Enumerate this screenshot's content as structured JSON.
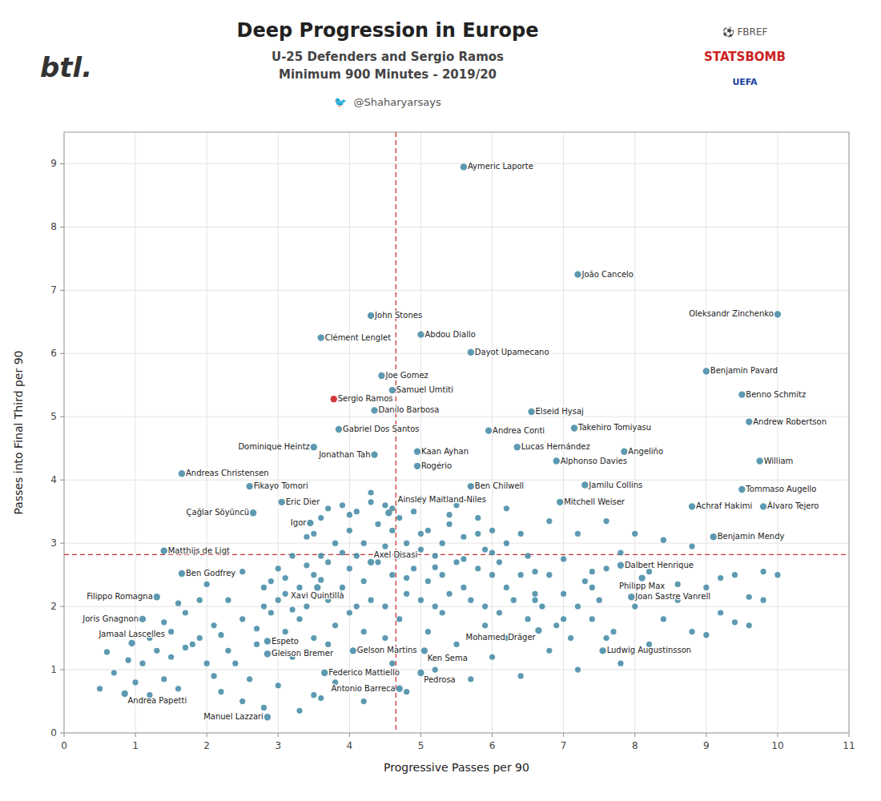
{
  "chart_data": {
    "type": "scatter",
    "title": "Deep Progression in Europe",
    "subtitle": [
      "U-25 Defenders and Sergio Ramos",
      "Minimum 900 Minutes - 2019/20"
    ],
    "annotations": [
      "🐦  @Shaharyarsays",
      "btl.",
      "⚽ FBREF",
      "STATSBOMB",
      "UEFA"
    ],
    "xlabel": "Progressive Passes per 90",
    "ylabel": "Passes into Final Third per 90",
    "xlim": [
      0,
      11
    ],
    "ylim": [
      0,
      9.5
    ],
    "xticks": [
      0,
      1,
      2,
      3,
      4,
      5,
      6,
      7,
      8,
      9,
      10,
      11
    ],
    "yticks": [
      0,
      1,
      2,
      3,
      4,
      5,
      6,
      7,
      8,
      9
    ],
    "grid": true,
    "reference_x": 4.65,
    "reference_y": 2.82,
    "series": [
      {
        "color": "#4a8fa8",
        "x": [
          0.5,
          0.6,
          0.7,
          0.9,
          1.0,
          1.1,
          1.2,
          1.2,
          1.3,
          1.4,
          1.4,
          1.5,
          1.5,
          1.6,
          1.6,
          1.7,
          1.7,
          1.8,
          1.9,
          1.9,
          2.0,
          2.0,
          2.1,
          2.1,
          2.2,
          2.2,
          2.3,
          2.3,
          2.4,
          2.5,
          2.5,
          2.5,
          2.6,
          2.7,
          2.7,
          2.8,
          2.8,
          2.8,
          2.9,
          2.9,
          3.0,
          3.0,
          3.0,
          3.1,
          3.1,
          3.1,
          3.2,
          3.2,
          3.2,
          3.3,
          3.3,
          3.3,
          3.4,
          3.4,
          3.4,
          3.5,
          3.5,
          3.5,
          3.5,
          3.6,
          3.6,
          3.6,
          3.6,
          3.7,
          3.7,
          3.7,
          3.7,
          3.8,
          3.8,
          3.8,
          3.9,
          3.9,
          3.9,
          4.0,
          4.0,
          4.0,
          4.0,
          4.1,
          4.1,
          4.1,
          4.2,
          4.2,
          4.2,
          4.2,
          4.3,
          4.3,
          4.3,
          4.4,
          4.4,
          4.5,
          4.5,
          4.5,
          4.5,
          4.6,
          4.6,
          4.6,
          4.6,
          4.7,
          4.7,
          4.7,
          4.8,
          4.8,
          4.8,
          4.8,
          4.9,
          4.9,
          5.0,
          5.0,
          5.0,
          5.0,
          5.1,
          5.1,
          5.1,
          5.2,
          5.2,
          5.2,
          5.2,
          5.3,
          5.3,
          5.3,
          5.4,
          5.4,
          5.4,
          5.5,
          5.5,
          5.5,
          5.6,
          5.6,
          5.6,
          5.7,
          5.7,
          5.8,
          5.8,
          5.8,
          5.9,
          5.9,
          5.9,
          6.0,
          6.0,
          6.0,
          6.0,
          6.1,
          6.1,
          6.2,
          6.2,
          6.2,
          6.2,
          6.3,
          6.4,
          6.4,
          6.4,
          6.5,
          6.5,
          6.6,
          6.6,
          6.6,
          6.7,
          6.8,
          6.8,
          6.8,
          6.9,
          7.0,
          7.0,
          7.0,
          7.1,
          7.2,
          7.2,
          7.2,
          7.3,
          7.4,
          7.4,
          7.4,
          7.5,
          7.6,
          7.6,
          7.6,
          7.7,
          7.8,
          7.8,
          8.0,
          8.0,
          8.2,
          8.2,
          8.4,
          8.4,
          8.6,
          8.6,
          8.8,
          8.8,
          9.0,
          9.0,
          9.2,
          9.2,
          9.4,
          9.4,
          9.6,
          9.6,
          9.8,
          9.8,
          10.0
        ],
        "values": [
          0.7,
          1.28,
          0.95,
          1.15,
          0.8,
          1.1,
          0.6,
          1.5,
          1.3,
          0.85,
          1.75,
          1.2,
          1.6,
          0.7,
          2.05,
          1.35,
          1.9,
          1.4,
          1.5,
          2.1,
          1.1,
          2.35,
          0.9,
          1.7,
          0.65,
          1.55,
          1.3,
          2.1,
          1.1,
          0.5,
          1.8,
          2.55,
          0.85,
          1.4,
          1.65,
          0.4,
          2.0,
          2.3,
          1.9,
          2.4,
          0.75,
          2.1,
          2.6,
          1.6,
          2.2,
          2.45,
          1.2,
          1.95,
          2.8,
          0.35,
          1.8,
          2.3,
          2.0,
          2.65,
          3.1,
          0.6,
          1.5,
          2.5,
          3.15,
          0.55,
          2.42,
          2.8,
          3.4,
          1.4,
          2.1,
          2.7,
          3.55,
          0.8,
          1.7,
          3.0,
          2.3,
          2.85,
          3.6,
          1.9,
          2.6,
          3.2,
          3.45,
          2.0,
          2.8,
          3.5,
          0.5,
          1.6,
          2.4,
          3.0,
          2.1,
          3.65,
          3.8,
          2.7,
          3.3,
          1.5,
          2.0,
          2.95,
          3.6,
          1.1,
          2.5,
          3.2,
          3.55,
          1.8,
          2.8,
          3.4,
          0.65,
          2.2,
          2.45,
          3.0,
          2.6,
          3.5,
          2.1,
          2.9,
          3.15,
          3.7,
          1.6,
          2.4,
          3.2,
          1.0,
          2.0,
          2.62,
          2.8,
          1.9,
          2.5,
          3.0,
          2.2,
          3.3,
          3.45,
          1.4,
          2.7,
          3.6,
          2.3,
          2.75,
          3.1,
          0.85,
          2.1,
          2.6,
          3.15,
          3.4,
          1.7,
          2.0,
          2.9,
          1.2,
          2.5,
          2.85,
          3.2,
          1.9,
          2.7,
          1.5,
          2.3,
          3.0,
          3.55,
          2.1,
          0.9,
          2.5,
          3.15,
          1.8,
          2.8,
          2.1,
          2.2,
          2.55,
          2.0,
          1.3,
          2.5,
          3.35,
          1.7,
          1.8,
          2.2,
          2.75,
          1.5,
          1.0,
          2.0,
          3.15,
          2.4,
          1.8,
          2.3,
          2.55,
          2.1,
          1.5,
          2.6,
          3.35,
          1.6,
          1.1,
          2.85,
          2.0,
          3.15,
          1.4,
          2.55,
          1.8,
          3.05,
          2.1,
          2.35,
          1.6,
          2.95,
          1.55,
          2.3,
          1.9,
          2.45,
          1.75,
          2.5,
          1.7,
          2.15,
          2.1,
          2.55,
          2.5
        ]
      },
      {
        "labels": [
          "Aymeric Laporte",
          "João Cancelo",
          "Oleksandr Zinchenko",
          "John Stones",
          "Clément Lenglet",
          "Abdou Diallo",
          "Dayot Upamecano",
          "Benjamin Pavard",
          "Joe Gomez",
          "Samuel Umtiti",
          "Sergio Ramos",
          "Benno Schmitz",
          "Danilo Barbosa",
          "Elseid Hysaj",
          "Andrew Robertson",
          "Gabriel Dos Santos",
          "Andrea Conti",
          "Takehiro Tomiyasu",
          "Dominique Heintz",
          "Jonathan Tah",
          "Kaan Ayhan",
          "Lucas Hernández",
          "Alphonso Davies",
          "Angeliño",
          "William",
          "Andreas Christensen",
          "Rogério",
          "Fikayo Tomori",
          "Ben Chilwell",
          "Jamilu Collins",
          "Tommaso Augello",
          "Eric Dier",
          "Mitchell Weiser",
          "Achraf Hakimi",
          "Álvaro Tejero",
          "Çağlar Söyüncü",
          "Igor",
          "Ainsley Maitland-Niles",
          "Benjamin Mendy",
          "Matthijs de Ligt",
          "Axel Disasi",
          "Dalbert Henrique",
          "Ben Godfrey",
          "Philipp Max",
          "Xavi Quintillà",
          "Filippo Romagna",
          "Joan Sastre Vanrell",
          "Joris Gnagnon",
          "Mohamed Dräger",
          "Jamaal Lascelles",
          "Espeto",
          "Gleison Bremer",
          "Gelson Martins",
          "Ludwig Augustinsson",
          "Ken Sema",
          "Federico Mattiello",
          "Pedrosa",
          "Andrea Papetti",
          "Antonio Barreca",
          "Manuel Lazzari"
        ],
        "x": [
          5.6,
          7.2,
          10.0,
          4.3,
          3.6,
          5.0,
          5.7,
          9.0,
          4.45,
          4.6,
          3.78,
          9.5,
          4.35,
          6.55,
          9.6,
          3.85,
          5.95,
          7.15,
          3.5,
          4.35,
          4.95,
          6.35,
          6.9,
          7.85,
          9.75,
          1.65,
          4.95,
          2.6,
          5.7,
          7.3,
          9.5,
          3.05,
          6.95,
          8.8,
          9.8,
          2.65,
          3.45,
          4.55,
          9.1,
          1.4,
          4.3,
          7.8,
          1.65,
          8.1,
          3.55,
          1.3,
          7.95,
          1.1,
          6.65,
          0.95,
          2.85,
          2.85,
          4.05,
          7.55,
          5.05,
          3.65,
          5.0,
          0.85,
          4.7,
          2.85
        ],
        "values": [
          8.95,
          7.25,
          6.62,
          6.6,
          6.25,
          6.3,
          6.02,
          5.72,
          5.65,
          5.42,
          5.28,
          5.35,
          5.1,
          5.08,
          4.92,
          4.8,
          4.78,
          4.82,
          4.52,
          4.4,
          4.45,
          4.52,
          4.3,
          4.45,
          4.3,
          4.1,
          4.22,
          3.9,
          3.9,
          3.92,
          3.85,
          3.65,
          3.65,
          3.58,
          3.58,
          3.48,
          3.32,
          3.48,
          3.1,
          2.88,
          2.7,
          2.65,
          2.52,
          2.45,
          2.3,
          2.15,
          2.15,
          1.8,
          1.62,
          1.42,
          1.45,
          1.25,
          1.3,
          1.3,
          1.3,
          0.95,
          0.95,
          0.62,
          0.7,
          0.25
        ],
        "colors": [
          "#4a8fa8",
          "#4a8fa8",
          "#4a8fa8",
          "#4a8fa8",
          "#4a8fa8",
          "#4a8fa8",
          "#4a8fa8",
          "#4a8fa8",
          "#4a8fa8",
          "#4a8fa8",
          "#cc2222",
          "#4a8fa8",
          "#4a8fa8",
          "#4a8fa8",
          "#4a8fa8",
          "#4a8fa8",
          "#4a8fa8",
          "#4a8fa8",
          "#4a8fa8",
          "#4a8fa8",
          "#4a8fa8",
          "#4a8fa8",
          "#4a8fa8",
          "#4a8fa8",
          "#4a8fa8",
          "#4a8fa8",
          "#4a8fa8",
          "#4a8fa8",
          "#4a8fa8",
          "#4a8fa8",
          "#4a8fa8",
          "#4a8fa8",
          "#4a8fa8",
          "#4a8fa8",
          "#4a8fa8",
          "#4a8fa8",
          "#4a8fa8",
          "#4a8fa8",
          "#4a8fa8",
          "#4a8fa8",
          "#4a8fa8",
          "#4a8fa8",
          "#4a8fa8",
          "#4a8fa8",
          "#4a8fa8",
          "#4a8fa8",
          "#4a8fa8",
          "#4a8fa8",
          "#4a8fa8",
          "#4a8fa8",
          "#4a8fa8",
          "#4a8fa8",
          "#4a8fa8",
          "#4a8fa8",
          "#4a8fa8",
          "#4a8fa8",
          "#4a8fa8",
          "#4a8fa8",
          "#4a8fa8",
          "#4a8fa8"
        ]
      }
    ]
  }
}
